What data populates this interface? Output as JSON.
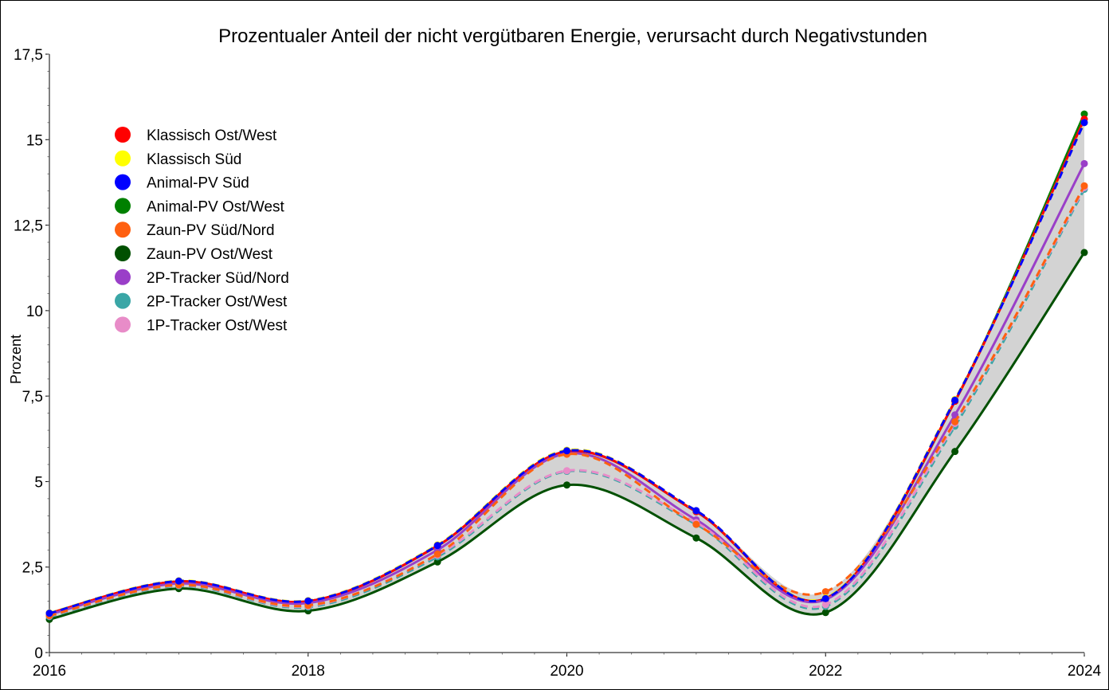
{
  "chart_data": {
    "type": "line",
    "title": "Prozentualer Anteil der nicht vergütbaren Energie, verursacht durch Negativstunden",
    "xlabel": "",
    "ylabel": "Prozent",
    "x": [
      2016,
      2017,
      2018,
      2019,
      2020,
      2021,
      2022,
      2023,
      2024
    ],
    "xticks": [
      "2016",
      "2018",
      "2020",
      "2022",
      "2024"
    ],
    "xtick_values": [
      2016,
      2018,
      2020,
      2022,
      2024
    ],
    "yticks": [
      "0",
      "2,5",
      "5",
      "7,5",
      "10",
      "12,5",
      "15",
      "17,5"
    ],
    "ytick_values": [
      0,
      2.5,
      5,
      7.5,
      10,
      12.5,
      15,
      17.5
    ],
    "xlim": [
      2016,
      2024
    ],
    "ylim": [
      0,
      17.5
    ],
    "legend_position": "top-left",
    "band_color": "#d3d3d3",
    "series": [
      {
        "name": "Klassisch Ost/West",
        "color": "#ff0000",
        "dash": false,
        "values": [
          1.15,
          2.08,
          1.5,
          3.12,
          5.88,
          4.12,
          1.58,
          7.35,
          15.6
        ]
      },
      {
        "name": "Klassisch Süd",
        "color": "#ffff00",
        "dash": true,
        "values": [
          1.16,
          2.1,
          1.52,
          3.15,
          5.92,
          4.15,
          1.6,
          7.4,
          15.5
        ]
      },
      {
        "name": "Animal-PV Süd",
        "color": "#0000ff",
        "dash": true,
        "values": [
          1.15,
          2.09,
          1.51,
          3.13,
          5.9,
          4.15,
          1.58,
          7.38,
          15.5
        ]
      },
      {
        "name": "Animal-PV Ost/West",
        "color": "#008000",
        "dash": false,
        "values": [
          1.15,
          2.08,
          1.5,
          3.12,
          5.88,
          4.12,
          1.58,
          7.35,
          15.75
        ]
      },
      {
        "name": "Zaun-PV Süd/Nord",
        "color": "#ff6010",
        "dash": true,
        "values": [
          1.08,
          1.98,
          1.38,
          2.88,
          5.8,
          3.75,
          1.78,
          6.75,
          13.65
        ]
      },
      {
        "name": "Zaun-PV Ost/West",
        "color": "#005000",
        "dash": false,
        "values": [
          0.97,
          1.87,
          1.22,
          2.65,
          4.9,
          3.35,
          1.17,
          5.88,
          11.7
        ]
      },
      {
        "name": "2P-Tracker Süd/Nord",
        "color": "#9a3fc8",
        "dash": false,
        "values": [
          1.12,
          2.02,
          1.45,
          3.0,
          5.82,
          3.88,
          1.55,
          6.95,
          14.3
        ]
      },
      {
        "name": "2P-Tracker Ost/West",
        "color": "#3aa6a6",
        "dash": true,
        "values": [
          1.05,
          1.95,
          1.33,
          2.8,
          5.3,
          3.75,
          1.35,
          6.62,
          13.55
        ]
      },
      {
        "name": "1P-Tracker Ost/West",
        "color": "#e88cc8",
        "dash": true,
        "values": [
          1.07,
          1.97,
          1.36,
          2.85,
          5.32,
          3.8,
          1.4,
          6.7,
          13.6
        ]
      }
    ]
  }
}
